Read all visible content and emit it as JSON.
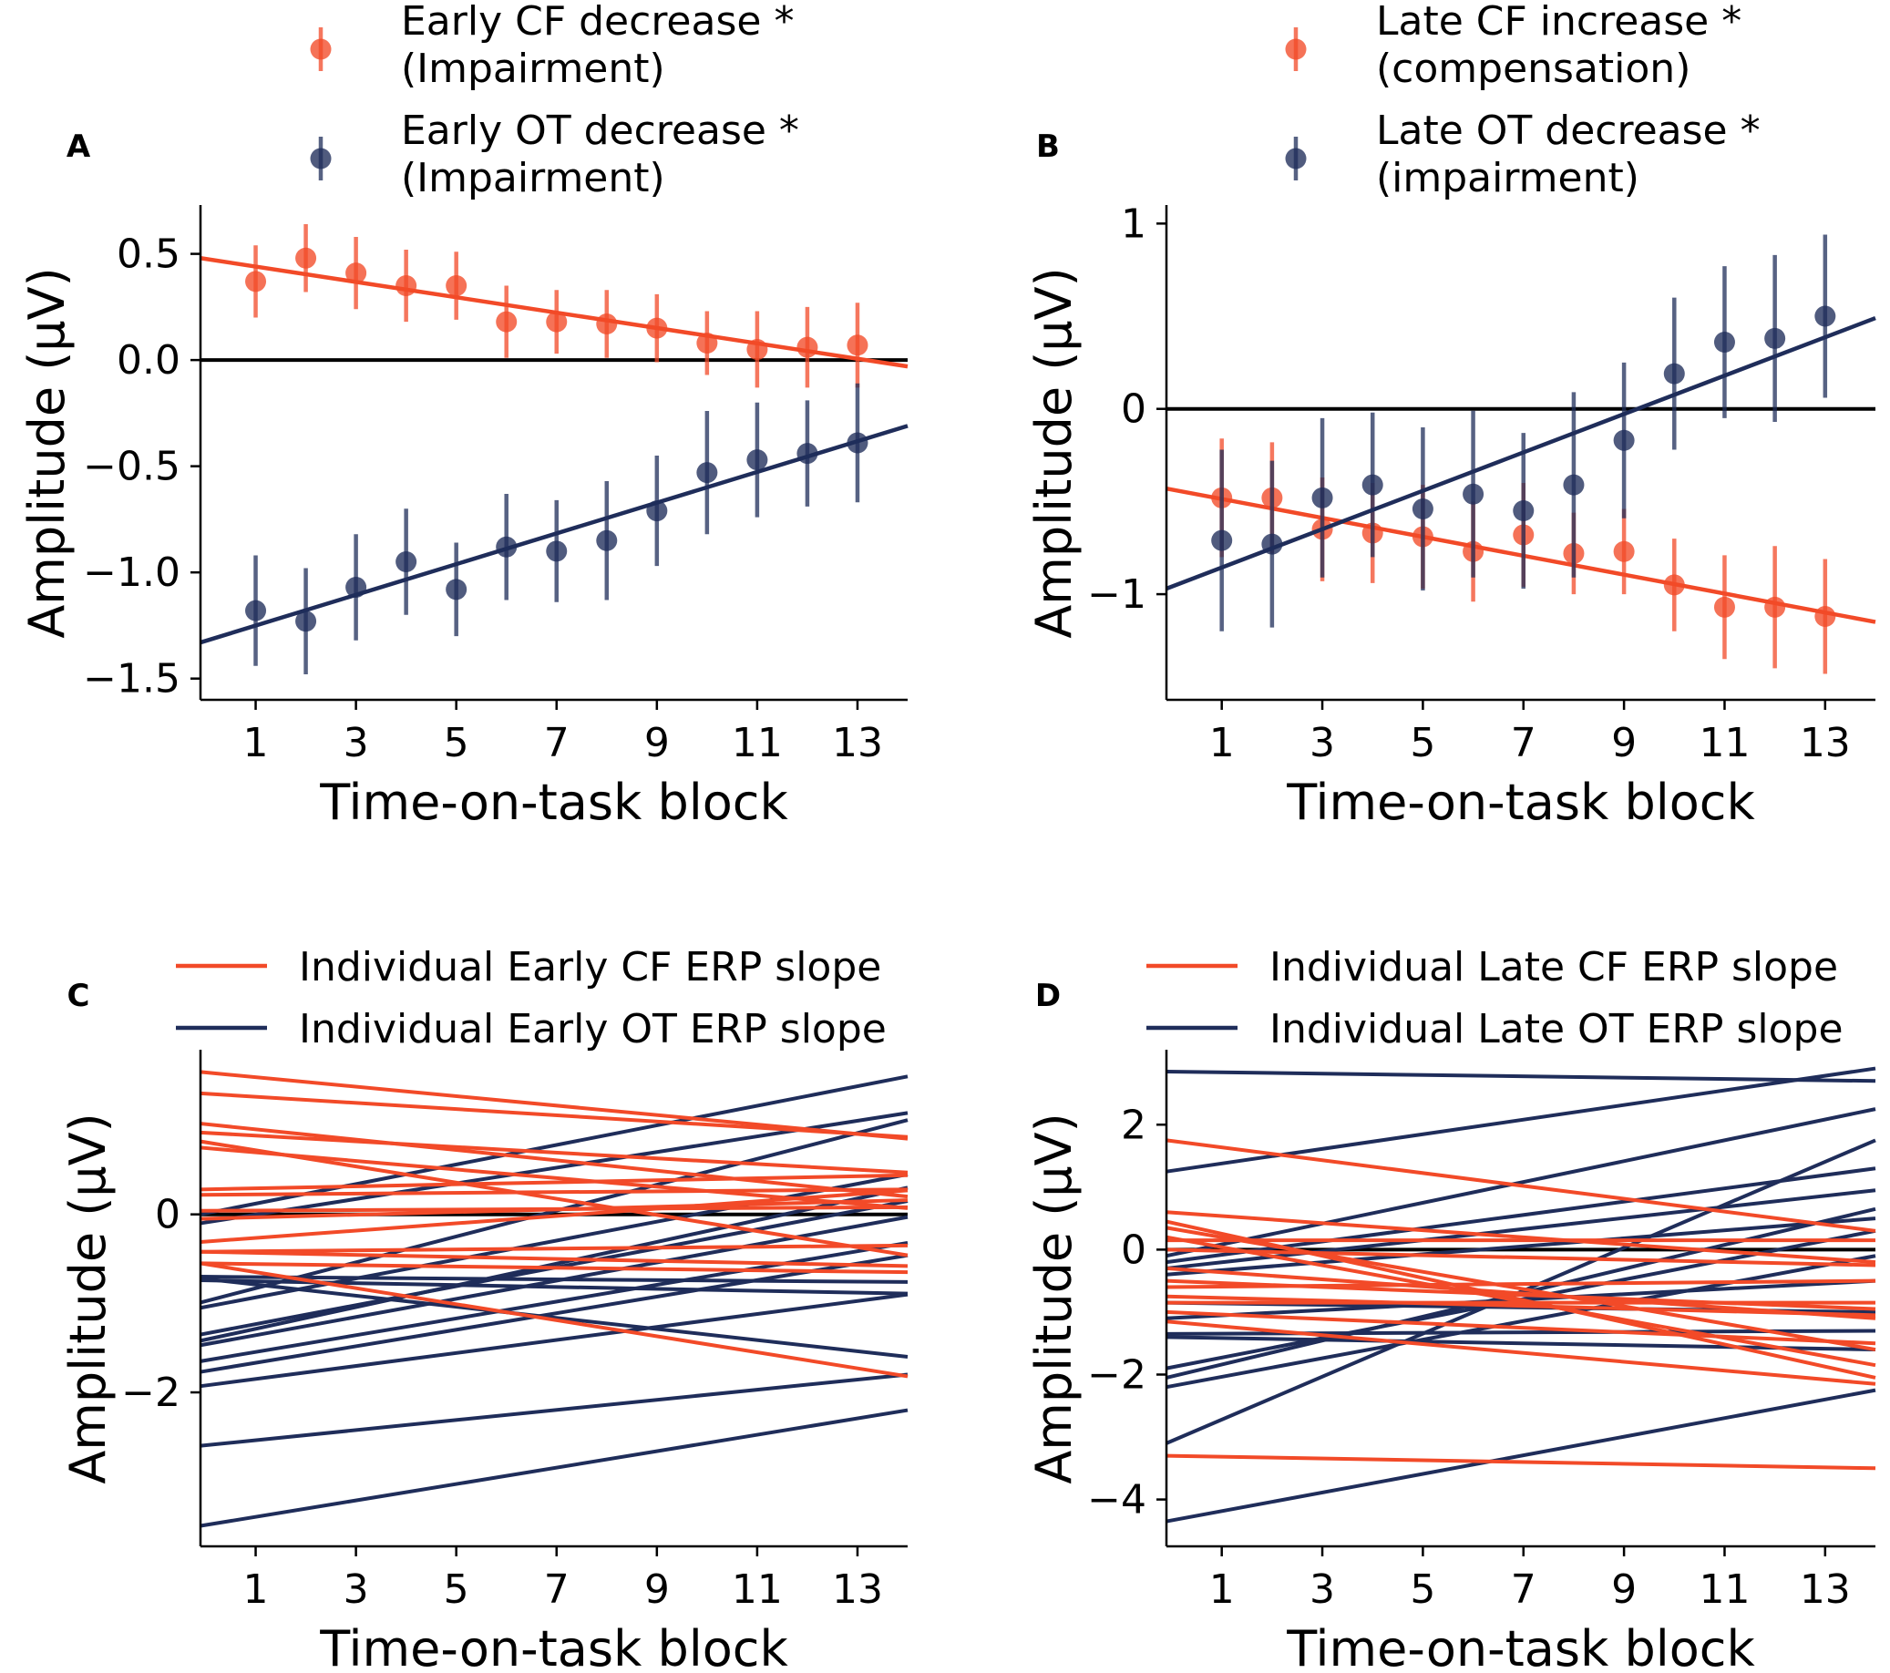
{
  "colors": {
    "cf": "#f24a28",
    "ot": "#1f2d5a",
    "zero_line": "#000000"
  },
  "chart_data": [
    {
      "panel": "A",
      "type": "scatter",
      "title": "",
      "xlabel": "Time-on-task block",
      "ylabel": "Amplitude (μV)",
      "xlim": [
        -0.1,
        14
      ],
      "ylim": [
        -1.6,
        0.73
      ],
      "xticks": [
        1,
        3,
        5,
        7,
        9,
        11,
        13
      ],
      "xtick_labels": [
        "1",
        "3",
        "5",
        "7",
        "9",
        "11",
        "13"
      ],
      "yticks": [
        0.5,
        0.0,
        -0.5,
        -1.0,
        -1.5
      ],
      "ytick_labels": [
        "0.5",
        "0.0",
        "−0.5",
        "−1.0",
        "−1.5"
      ],
      "zero_line": true,
      "legend_position": "top",
      "series": [
        {
          "name": "Early CF decrease *",
          "sublabel": "(Impairment)",
          "color_key": "cf",
          "x": [
            1,
            2,
            3,
            4,
            5,
            6,
            7,
            8,
            9,
            10,
            11,
            12,
            13
          ],
          "y": [
            0.37,
            0.48,
            0.41,
            0.35,
            0.35,
            0.18,
            0.18,
            0.17,
            0.15,
            0.08,
            0.05,
            0.06,
            0.07
          ],
          "err": [
            0.17,
            0.16,
            0.17,
            0.17,
            0.16,
            0.17,
            0.15,
            0.16,
            0.16,
            0.15,
            0.18,
            0.19,
            0.2
          ],
          "fit": {
            "x": [
              -0.1,
              14
            ],
            "y": [
              0.48,
              -0.03
            ]
          }
        },
        {
          "name": "Early OT decrease *",
          "sublabel": "(Impairment)",
          "color_key": "ot",
          "x": [
            1,
            2,
            3,
            4,
            5,
            6,
            7,
            8,
            9,
            10,
            11,
            12,
            13
          ],
          "y": [
            -1.18,
            -1.23,
            -1.07,
            -0.95,
            -1.08,
            -0.88,
            -0.9,
            -0.85,
            -0.71,
            -0.53,
            -0.47,
            -0.44,
            -0.39
          ],
          "err": [
            0.26,
            0.25,
            0.25,
            0.25,
            0.22,
            0.25,
            0.24,
            0.28,
            0.26,
            0.29,
            0.27,
            0.25,
            0.28
          ],
          "fit": {
            "x": [
              -0.1,
              14
            ],
            "y": [
              -1.33,
              -0.31
            ]
          }
        }
      ]
    },
    {
      "panel": "B",
      "type": "scatter",
      "title": "",
      "xlabel": "Time-on-task block",
      "ylabel": "Amplitude (μV)",
      "xlim": [
        -0.1,
        14
      ],
      "ylim": [
        -1.57,
        1.1
      ],
      "xticks": [
        1,
        3,
        5,
        7,
        9,
        11,
        13
      ],
      "xtick_labels": [
        "1",
        "3",
        "5",
        "7",
        "9",
        "11",
        "13"
      ],
      "yticks": [
        1,
        0,
        -1
      ],
      "ytick_labels": [
        "1",
        "0",
        "−1"
      ],
      "zero_line": true,
      "legend_position": "top",
      "series": [
        {
          "name": "Late CF increase *",
          "sublabel": "(compensation)",
          "color_key": "cf",
          "x": [
            1,
            2,
            3,
            4,
            5,
            6,
            7,
            8,
            9,
            10,
            11,
            12,
            13
          ],
          "y": [
            -0.48,
            -0.48,
            -0.65,
            -0.67,
            -0.69,
            -0.77,
            -0.68,
            -0.78,
            -0.77,
            -0.95,
            -1.07,
            -1.07,
            -1.12
          ],
          "err": [
            0.32,
            0.3,
            0.28,
            0.27,
            0.28,
            0.27,
            0.28,
            0.22,
            0.23,
            0.25,
            0.28,
            0.33,
            0.31
          ],
          "fit": {
            "x": [
              -0.1,
              14
            ],
            "y": [
              -0.43,
              -1.15
            ]
          }
        },
        {
          "name": "Late OT decrease *",
          "sublabel": "(impairment)",
          "color_key": "ot",
          "x": [
            1,
            2,
            3,
            4,
            5,
            6,
            7,
            8,
            9,
            10,
            11,
            12,
            13
          ],
          "y": [
            -0.71,
            -0.73,
            -0.48,
            -0.41,
            -0.54,
            -0.46,
            -0.55,
            -0.41,
            -0.17,
            0.19,
            0.36,
            0.38,
            0.5
          ],
          "err": [
            0.49,
            0.45,
            0.43,
            0.39,
            0.44,
            0.45,
            0.42,
            0.5,
            0.42,
            0.41,
            0.41,
            0.45,
            0.44
          ],
          "fit": {
            "x": [
              -0.1,
              14
            ],
            "y": [
              -0.97,
              0.49
            ]
          }
        }
      ]
    },
    {
      "panel": "C",
      "type": "line",
      "title": "",
      "xlabel": "Time-on-task block",
      "ylabel": "Amplitude (μV)",
      "xlim": [
        -0.1,
        14
      ],
      "ylim": [
        -3.73,
        1.85
      ],
      "xticks": [
        1,
        3,
        5,
        7,
        9,
        11,
        13
      ],
      "xtick_labels": [
        "1",
        "3",
        "5",
        "7",
        "9",
        "11",
        "13"
      ],
      "yticks": [
        0,
        -2
      ],
      "ytick_labels": [
        "0",
        "−2"
      ],
      "zero_line": true,
      "legend_position": "top",
      "legend": [
        "Individual Early CF ERP slope",
        "Individual Early OT ERP slope"
      ],
      "x_range": [
        -0.1,
        14
      ],
      "series": [
        {
          "name": "Individual Early CF ERP slope",
          "color_key": "cf",
          "lines": [
            [
              1.6,
              0.85
            ],
            [
              1.36,
              0.87
            ],
            [
              1.02,
              0.2
            ],
            [
              0.92,
              0.47
            ],
            [
              0.82,
              -0.46
            ],
            [
              0.75,
              0.07
            ],
            [
              0.28,
              0.44
            ],
            [
              0.22,
              0.28
            ],
            [
              0.04,
              0.08
            ],
            [
              -0.05,
              0.16
            ],
            [
              -0.31,
              0.27
            ],
            [
              -0.42,
              -0.35
            ],
            [
              -0.42,
              -0.58
            ],
            [
              -0.55,
              -0.65
            ],
            [
              -0.55,
              -1.82
            ]
          ]
        },
        {
          "name": "Individual Early OT ERP slope",
          "color_key": "ot",
          "lines": [
            [
              0.0,
              1.55
            ],
            [
              -0.1,
              1.14
            ],
            [
              -0.7,
              -0.76
            ],
            [
              -0.72,
              -1.6
            ],
            [
              -0.74,
              -0.89
            ],
            [
              -0.99,
              1.06
            ],
            [
              -1.05,
              0.45
            ],
            [
              -1.35,
              0.15
            ],
            [
              -1.42,
              0.3
            ],
            [
              -1.47,
              -0.03
            ],
            [
              -1.65,
              -0.32
            ],
            [
              -1.77,
              -0.46
            ],
            [
              -1.93,
              -0.9
            ],
            [
              -2.6,
              -1.8
            ],
            [
              -3.5,
              -2.2
            ]
          ]
        }
      ]
    },
    {
      "panel": "D",
      "type": "line",
      "title": "",
      "xlabel": "Time-on-task block",
      "ylabel": "Amplitude (μV)",
      "xlim": [
        -0.1,
        14
      ],
      "ylim": [
        -4.75,
        3.2
      ],
      "xticks": [
        1,
        3,
        5,
        7,
        9,
        11,
        13
      ],
      "xtick_labels": [
        "1",
        "3",
        "5",
        "7",
        "9",
        "11",
        "13"
      ],
      "yticks": [
        2,
        0,
        -2,
        -4
      ],
      "ytick_labels": [
        "2",
        "0",
        "−2",
        "−4"
      ],
      "zero_line": true,
      "legend_position": "top",
      "legend": [
        "Individual Late CF ERP slope",
        "Individual Late OT ERP slope"
      ],
      "x_range": [
        -0.1,
        14
      ],
      "series": [
        {
          "name": "Individual Late CF ERP slope",
          "color_key": "cf",
          "lines": [
            [
              1.75,
              0.3
            ],
            [
              0.6,
              -0.2
            ],
            [
              0.45,
              -2.05
            ],
            [
              0.35,
              -1.6
            ],
            [
              0.2,
              -1.85
            ],
            [
              0.15,
              0.15
            ],
            [
              0.0,
              -0.25
            ],
            [
              -0.3,
              -1.1
            ],
            [
              -0.5,
              -0.95
            ],
            [
              -0.6,
              -0.5
            ],
            [
              -0.75,
              -1.05
            ],
            [
              -0.85,
              -0.85
            ],
            [
              -1.0,
              -1.5
            ],
            [
              -1.15,
              -2.15
            ],
            [
              -3.3,
              -3.5
            ]
          ]
        },
        {
          "name": "Individual Late OT ERP slope",
          "color_key": "ot",
          "lines": [
            [
              2.85,
              2.7
            ],
            [
              1.25,
              2.9
            ],
            [
              -0.1,
              2.25
            ],
            [
              -0.2,
              1.3
            ],
            [
              -0.3,
              0.95
            ],
            [
              -0.4,
              0.5
            ],
            [
              -0.85,
              -1.0
            ],
            [
              -1.1,
              -0.5
            ],
            [
              -1.35,
              -1.3
            ],
            [
              -1.4,
              -1.6
            ],
            [
              -1.9,
              0.3
            ],
            [
              -2.05,
              0.65
            ],
            [
              -2.2,
              -0.1
            ],
            [
              -3.1,
              1.75
            ],
            [
              -4.35,
              -2.25
            ]
          ]
        }
      ]
    }
  ]
}
